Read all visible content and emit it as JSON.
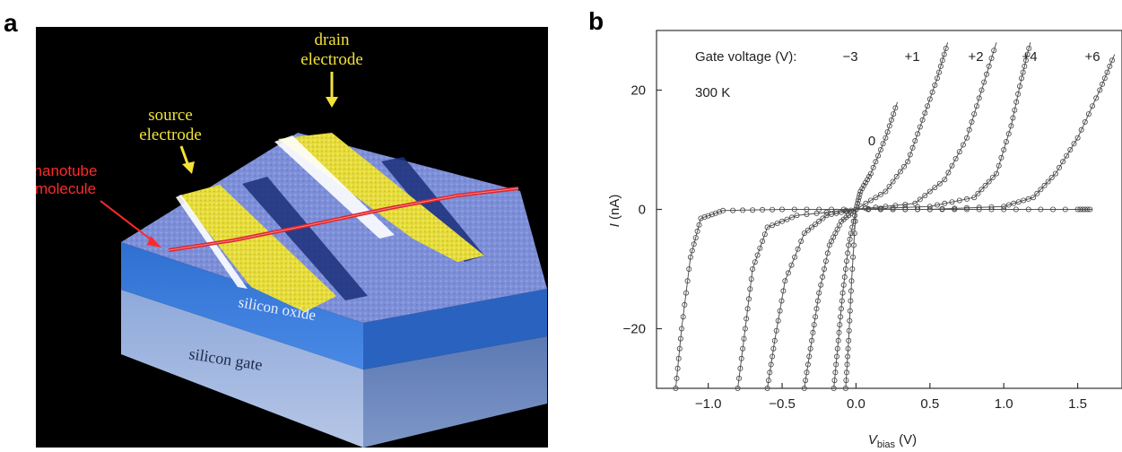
{
  "panel_a": {
    "letter": "a",
    "labels": {
      "drain": [
        "drain",
        "electrode"
      ],
      "source": [
        "source",
        "electrode"
      ],
      "nanotube": [
        "nanotube",
        "molecule"
      ],
      "oxide": "silicon oxide",
      "gate": "silicon gate"
    },
    "colors": {
      "background": "#000000",
      "oxide": "#3d7fdc",
      "gate": "#8aa6d6",
      "electrode": "#e8df3c",
      "surface": "#7f8fd6",
      "nanotube": "#e0242a",
      "label_yellow": "#f2e23a",
      "label_red": "#ff2a2a"
    }
  },
  "panel_b": {
    "letter": "b",
    "header_text": "Gate voltage (V):",
    "temperature": "300 K",
    "xlabel_main": "V",
    "xlabel_sub": "bias",
    "xlabel_unit": " (V)",
    "ylabel": "I (nA)",
    "x_ticks": [
      "−1.0",
      "−0.5",
      "0.0",
      "0.5",
      "1.0",
      "1.5"
    ],
    "y_ticks": [
      "20",
      "0",
      "−20"
    ],
    "curve_labels": [
      "−3",
      "0",
      "+1",
      "+2",
      "+4",
      "+6"
    ]
  },
  "chart_data": {
    "type": "scatter",
    "xlabel": "Vbias (V)",
    "ylabel": "I (nA)",
    "xlim": [
      -1.35,
      1.8
    ],
    "ylim": [
      -30,
      30
    ],
    "x_ticks": [
      -1.0,
      -0.5,
      0.0,
      0.5,
      1.0,
      1.5
    ],
    "y_ticks": [
      -20,
      0,
      20
    ],
    "grid": false,
    "annotations": [
      "Gate voltage (V):",
      "300 K"
    ],
    "series": [
      {
        "name": "−3",
        "points": [
          [
            -1.22,
            -30
          ],
          [
            -1.18,
            -20
          ],
          [
            -1.12,
            -8
          ],
          [
            -1.05,
            -1.5
          ],
          [
            -0.9,
            -0.2
          ],
          [
            -0.5,
            0
          ],
          [
            0,
            0
          ],
          [
            0.5,
            0
          ],
          [
            1.0,
            0
          ],
          [
            1.5,
            0
          ],
          [
            1.6,
            0
          ]
        ]
      },
      {
        "name": "0",
        "points": [
          [
            -0.07,
            -30
          ],
          [
            -0.05,
            -22
          ],
          [
            -0.03,
            -12
          ],
          [
            0,
            0
          ],
          [
            0.03,
            3
          ],
          [
            0.1,
            6
          ],
          [
            0.2,
            12
          ],
          [
            0.28,
            18
          ]
        ]
      },
      {
        "name": "+1",
        "points": [
          [
            -0.8,
            -30
          ],
          [
            -0.75,
            -20
          ],
          [
            -0.7,
            -10
          ],
          [
            -0.6,
            -3
          ],
          [
            -0.4,
            -1
          ],
          [
            0,
            0
          ],
          [
            0.2,
            3
          ],
          [
            0.35,
            8
          ],
          [
            0.45,
            15
          ],
          [
            0.55,
            22
          ],
          [
            0.62,
            28
          ]
        ]
      },
      {
        "name": "+2",
        "points": [
          [
            -0.6,
            -30
          ],
          [
            -0.55,
            -22
          ],
          [
            -0.48,
            -12
          ],
          [
            -0.35,
            -4
          ],
          [
            -0.2,
            -1
          ],
          [
            0,
            0
          ],
          [
            0.4,
            1
          ],
          [
            0.6,
            5
          ],
          [
            0.75,
            12
          ],
          [
            0.85,
            20
          ],
          [
            0.95,
            28
          ]
        ]
      },
      {
        "name": "+4",
        "points": [
          [
            -0.35,
            -30
          ],
          [
            -0.3,
            -22
          ],
          [
            -0.25,
            -14
          ],
          [
            -0.18,
            -6
          ],
          [
            -0.1,
            -2
          ],
          [
            0,
            0
          ],
          [
            0.5,
            0.5
          ],
          [
            0.8,
            2
          ],
          [
            0.95,
            6
          ],
          [
            1.05,
            14
          ],
          [
            1.12,
            22
          ],
          [
            1.18,
            28
          ]
        ]
      },
      {
        "name": "+6",
        "points": [
          [
            -0.15,
            -30
          ],
          [
            -0.12,
            -22
          ],
          [
            -0.09,
            -14
          ],
          [
            -0.05,
            -6
          ],
          [
            0,
            0
          ],
          [
            0.5,
            0
          ],
          [
            1.0,
            0.5
          ],
          [
            1.2,
            2
          ],
          [
            1.35,
            6
          ],
          [
            1.5,
            12
          ],
          [
            1.65,
            20
          ],
          [
            1.75,
            26
          ]
        ]
      }
    ]
  }
}
